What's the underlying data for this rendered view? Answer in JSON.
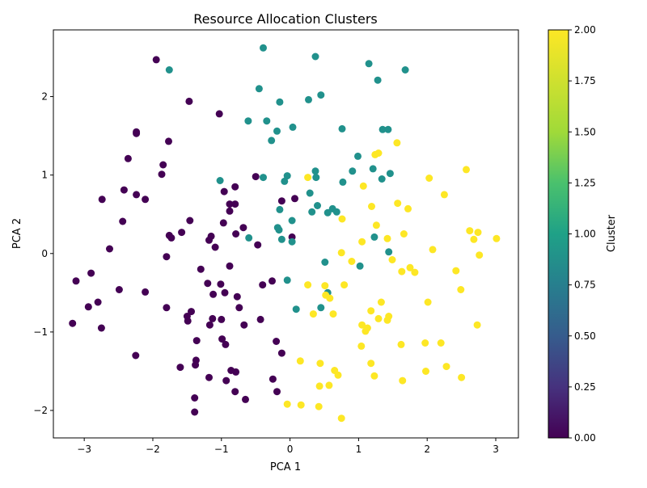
{
  "chart_data": {
    "type": "scatter",
    "title": "Resource Allocation Clusters",
    "xlabel": "PCA 1",
    "ylabel": "PCA 2",
    "xlim": [
      -3.45,
      3.33
    ],
    "ylim": [
      -2.35,
      2.85
    ],
    "x_ticks": [
      -3,
      -2,
      -1,
      0,
      1,
      2,
      3
    ],
    "y_ticks": [
      -2,
      -1,
      0,
      1,
      2
    ],
    "grid": false,
    "colorbar": {
      "label": "Cluster",
      "range": [
        0,
        2
      ],
      "colormap": "viridis",
      "ticks": [
        "0.00",
        "0.25",
        "0.50",
        "0.75",
        "1.00",
        "1.25",
        "1.50",
        "1.75",
        "2.00"
      ]
    },
    "cluster_colors": {
      "0": "#440154",
      "1": "#21918c",
      "2": "#fde725"
    },
    "series": [
      {
        "cluster": 0,
        "points": [
          [
            -1.95,
            2.47
          ],
          [
            -1.47,
            1.94
          ],
          [
            -1.03,
            1.78
          ],
          [
            -2.24,
            1.55
          ],
          [
            -2.24,
            1.53
          ],
          [
            -1.77,
            1.43
          ],
          [
            -2.36,
            1.21
          ],
          [
            -1.85,
            1.13
          ],
          [
            -1.87,
            1.01
          ],
          [
            -0.5,
            0.98
          ],
          [
            -0.8,
            0.85
          ],
          [
            -0.96,
            0.79
          ],
          [
            -2.42,
            0.81
          ],
          [
            -2.24,
            0.75
          ],
          [
            -2.11,
            0.69
          ],
          [
            -2.74,
            0.69
          ],
          [
            -0.12,
            0.67
          ],
          [
            0.07,
            0.7
          ],
          [
            -0.88,
            0.63
          ],
          [
            -0.8,
            0.63
          ],
          [
            -0.88,
            0.54
          ],
          [
            -2.44,
            0.41
          ],
          [
            -1.46,
            0.42
          ],
          [
            -0.97,
            0.39
          ],
          [
            -0.68,
            0.33
          ],
          [
            -1.58,
            0.27
          ],
          [
            -1.76,
            0.23
          ],
          [
            -1.73,
            0.2
          ],
          [
            -1.15,
            0.22
          ],
          [
            -0.79,
            0.25
          ],
          [
            -1.18,
            0.17
          ],
          [
            -0.47,
            0.11
          ],
          [
            -1.09,
            0.08
          ],
          [
            -2.63,
            0.06
          ],
          [
            0.03,
            0.21
          ],
          [
            -1.8,
            -0.04
          ],
          [
            -0.88,
            -0.16
          ],
          [
            -1.3,
            -0.2
          ],
          [
            -2.9,
            -0.25
          ],
          [
            -3.12,
            -0.35
          ],
          [
            -0.26,
            -0.35
          ],
          [
            -0.4,
            -0.4
          ],
          [
            -1.01,
            -0.39
          ],
          [
            -1.2,
            -0.38
          ],
          [
            -2.49,
            -0.46
          ],
          [
            -2.11,
            -0.49
          ],
          [
            -0.95,
            -0.5
          ],
          [
            -1.12,
            -0.52
          ],
          [
            -0.77,
            -0.55
          ],
          [
            -2.8,
            -0.62
          ],
          [
            -2.94,
            -0.68
          ],
          [
            -1.8,
            -0.69
          ],
          [
            -0.74,
            -0.69
          ],
          [
            -1.44,
            -0.74
          ],
          [
            -1.13,
            -0.83
          ],
          [
            -1.5,
            -0.8
          ],
          [
            -1.49,
            -0.86
          ],
          [
            -1.0,
            -0.84
          ],
          [
            -0.43,
            -0.84
          ],
          [
            -3.17,
            -0.89
          ],
          [
            -1.17,
            -0.91
          ],
          [
            -0.67,
            -0.91
          ],
          [
            -2.75,
            -0.95
          ],
          [
            -0.99,
            -1.09
          ],
          [
            -1.36,
            -1.11
          ],
          [
            -0.2,
            -1.12
          ],
          [
            -0.94,
            -1.16
          ],
          [
            -0.12,
            -1.27
          ],
          [
            -2.25,
            -1.3
          ],
          [
            -1.37,
            -1.36
          ],
          [
            -1.38,
            -1.42
          ],
          [
            -1.6,
            -1.45
          ],
          [
            -0.86,
            -1.49
          ],
          [
            -0.79,
            -1.51
          ],
          [
            -1.18,
            -1.58
          ],
          [
            -0.25,
            -1.6
          ],
          [
            -0.93,
            -1.62
          ],
          [
            -0.8,
            -1.76
          ],
          [
            -0.19,
            -1.76
          ],
          [
            -1.39,
            -1.84
          ],
          [
            -0.65,
            -1.86
          ],
          [
            -1.39,
            -2.02
          ]
        ]
      },
      {
        "cluster": 1,
        "points": [
          [
            -0.39,
            2.62
          ],
          [
            0.37,
            2.51
          ],
          [
            -1.76,
            2.34
          ],
          [
            1.15,
            2.42
          ],
          [
            1.68,
            2.34
          ],
          [
            1.28,
            2.21
          ],
          [
            -0.45,
            2.1
          ],
          [
            0.45,
            2.02
          ],
          [
            0.27,
            1.96
          ],
          [
            -0.15,
            1.93
          ],
          [
            -0.61,
            1.69
          ],
          [
            -0.34,
            1.69
          ],
          [
            -0.19,
            1.56
          ],
          [
            0.04,
            1.61
          ],
          [
            0.76,
            1.59
          ],
          [
            1.35,
            1.58
          ],
          [
            1.43,
            1.58
          ],
          [
            -0.27,
            1.44
          ],
          [
            0.99,
            1.24
          ],
          [
            0.91,
            1.05
          ],
          [
            0.37,
            1.05
          ],
          [
            1.21,
            1.08
          ],
          [
            1.46,
            1.02
          ],
          [
            -1.02,
            0.93
          ],
          [
            -0.04,
            0.99
          ],
          [
            -0.08,
            0.92
          ],
          [
            0.38,
            0.97
          ],
          [
            -0.39,
            0.97
          ],
          [
            0.77,
            0.91
          ],
          [
            1.34,
            0.95
          ],
          [
            0.29,
            0.77
          ],
          [
            0.4,
            0.61
          ],
          [
            -0.15,
            0.56
          ],
          [
            0.32,
            0.53
          ],
          [
            0.55,
            0.52
          ],
          [
            0.62,
            0.57
          ],
          [
            0.68,
            0.53
          ],
          [
            0.03,
            0.42
          ],
          [
            -0.18,
            0.33
          ],
          [
            -0.16,
            0.3
          ],
          [
            -0.6,
            0.2
          ],
          [
            -0.12,
            0.18
          ],
          [
            0.03,
            0.15
          ],
          [
            1.23,
            0.21
          ],
          [
            1.44,
            0.02
          ],
          [
            1.02,
            -0.16
          ],
          [
            0.51,
            -0.11
          ],
          [
            -0.04,
            -0.34
          ],
          [
            0.55,
            -0.5
          ],
          [
            0.09,
            -0.71
          ],
          [
            0.45,
            -0.69
          ]
        ]
      },
      {
        "cluster": 2,
        "points": [
          [
            1.56,
            1.41
          ],
          [
            1.24,
            1.26
          ],
          [
            1.29,
            1.28
          ],
          [
            2.57,
            1.07
          ],
          [
            2.03,
            0.96
          ],
          [
            0.26,
            0.97
          ],
          [
            1.07,
            0.86
          ],
          [
            2.25,
            0.75
          ],
          [
            1.57,
            0.64
          ],
          [
            1.19,
            0.6
          ],
          [
            1.72,
            0.57
          ],
          [
            0.76,
            0.44
          ],
          [
            1.26,
            0.36
          ],
          [
            2.62,
            0.29
          ],
          [
            2.74,
            0.27
          ],
          [
            1.66,
            0.25
          ],
          [
            2.68,
            0.18
          ],
          [
            3.01,
            0.19
          ],
          [
            1.42,
            0.19
          ],
          [
            1.05,
            0.15
          ],
          [
            2.08,
            0.05
          ],
          [
            0.75,
            0.01
          ],
          [
            2.76,
            -0.02
          ],
          [
            1.49,
            -0.08
          ],
          [
            0.9,
            -0.1
          ],
          [
            1.75,
            -0.18
          ],
          [
            1.82,
            -0.24
          ],
          [
            1.63,
            -0.23
          ],
          [
            2.42,
            -0.22
          ],
          [
            0.26,
            -0.4
          ],
          [
            0.51,
            -0.41
          ],
          [
            0.79,
            -0.4
          ],
          [
            2.49,
            -0.46
          ],
          [
            0.52,
            -0.53
          ],
          [
            0.58,
            -0.57
          ],
          [
            1.33,
            -0.62
          ],
          [
            2.01,
            -0.62
          ],
          [
            1.18,
            -0.73
          ],
          [
            0.34,
            -0.77
          ],
          [
            0.63,
            -0.77
          ],
          [
            1.44,
            -0.8
          ],
          [
            1.29,
            -0.83
          ],
          [
            1.42,
            -0.85
          ],
          [
            1.05,
            -0.91
          ],
          [
            2.73,
            -0.91
          ],
          [
            1.13,
            -0.95
          ],
          [
            1.1,
            -0.99
          ],
          [
            1.97,
            -1.14
          ],
          [
            2.2,
            -1.14
          ],
          [
            1.62,
            -1.16
          ],
          [
            1.04,
            -1.18
          ],
          [
            0.15,
            -1.37
          ],
          [
            0.44,
            -1.4
          ],
          [
            1.18,
            -1.4
          ],
          [
            2.28,
            -1.44
          ],
          [
            0.65,
            -1.49
          ],
          [
            1.98,
            -1.5
          ],
          [
            0.7,
            -1.55
          ],
          [
            1.23,
            -1.56
          ],
          [
            2.5,
            -1.58
          ],
          [
            1.64,
            -1.62
          ],
          [
            0.57,
            -1.68
          ],
          [
            0.43,
            -1.69
          ],
          [
            -0.04,
            -1.92
          ],
          [
            0.16,
            -1.93
          ],
          [
            0.42,
            -1.95
          ],
          [
            0.75,
            -2.1
          ]
        ]
      }
    ]
  }
}
